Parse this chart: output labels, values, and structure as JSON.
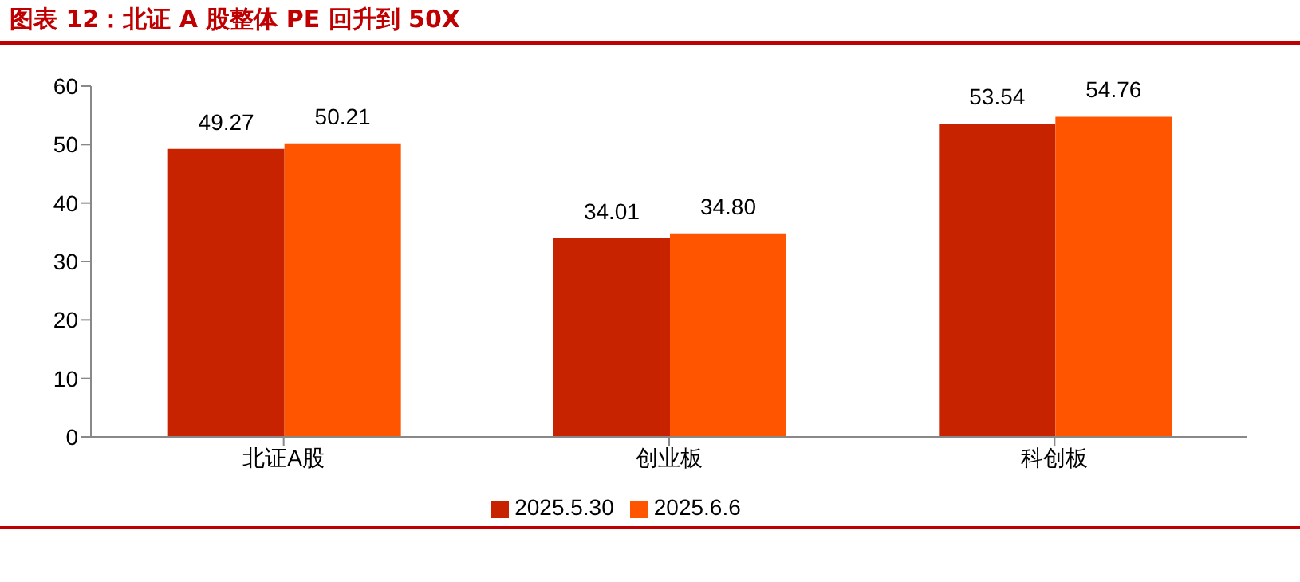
{
  "chart_data": {
    "type": "bar",
    "title": "图表 12：北证 A 股整体 PE 回升到 50X",
    "categories": [
      "北证A股",
      "创业板",
      "科创板"
    ],
    "series": [
      {
        "name": "2025.5.30",
        "color": "#c82300",
        "values": [
          49.27,
          34.01,
          53.54
        ],
        "value_labels": [
          "49.27",
          "34.01",
          "53.54"
        ]
      },
      {
        "name": "2025.6.6",
        "color": "#ff5500",
        "values": [
          50.21,
          34.8,
          54.76
        ],
        "value_labels": [
          "50.21",
          "34.80",
          "54.76"
        ]
      }
    ],
    "ylim": [
      0,
      60
    ],
    "yticks": [
      0,
      10,
      20,
      30,
      40,
      50,
      60
    ],
    "legend": "bottom"
  }
}
